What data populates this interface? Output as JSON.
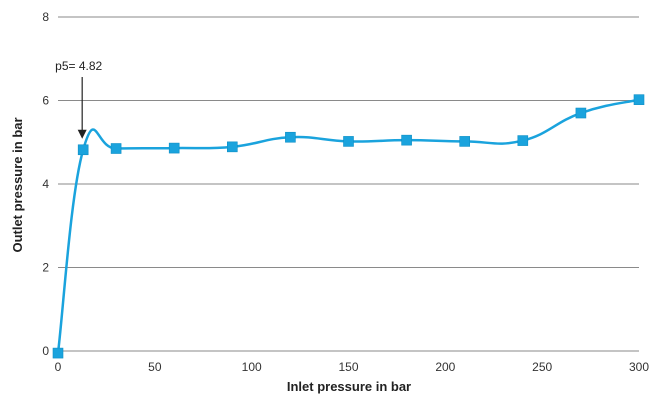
{
  "chart_data": {
    "type": "line",
    "title": "",
    "xlabel": "Inlet pressure in bar",
    "ylabel": "Outlet pressure in bar",
    "xlim": [
      0,
      300
    ],
    "ylim": [
      0,
      8
    ],
    "xticks": [
      0,
      50,
      100,
      150,
      200,
      250,
      300
    ],
    "yticks": [
      0,
      2,
      4,
      6,
      8
    ],
    "grid": "horizontal",
    "smooth": true,
    "series": [
      {
        "name": "",
        "color": "#1aa3dd",
        "x": [
          0,
          13,
          30,
          60,
          90,
          120,
          150,
          180,
          210,
          240,
          270,
          300
        ],
        "y": [
          -0.05,
          4.82,
          4.85,
          4.86,
          4.89,
          5.12,
          5.02,
          5.05,
          5.02,
          5.04,
          5.7,
          6.02
        ]
      }
    ],
    "annotations": [
      {
        "text": "p5= 4.82",
        "x": 13,
        "y": 4.82
      }
    ]
  }
}
